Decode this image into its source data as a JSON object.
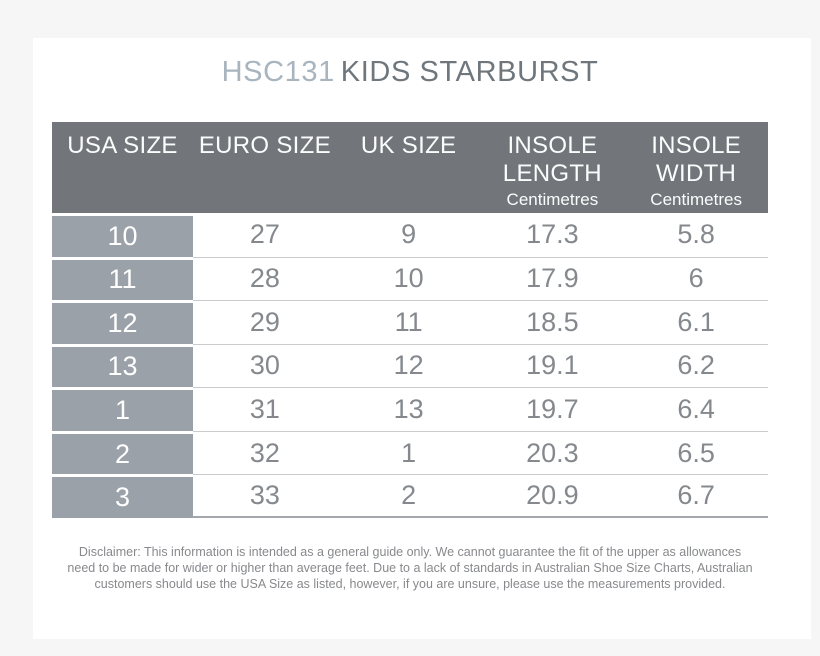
{
  "title": {
    "code": "HSC131",
    "name": "KIDS STARBURST"
  },
  "table": {
    "headers": [
      {
        "label": "USA SIZE",
        "sub": ""
      },
      {
        "label": "EURO SIZE",
        "sub": ""
      },
      {
        "label": "UK SIZE",
        "sub": ""
      },
      {
        "label": "INSOLE LENGTH",
        "sub": "Centimetres"
      },
      {
        "label": "INSOLE WIDTH",
        "sub": "Centimetres"
      }
    ],
    "rows": [
      [
        "10",
        "27",
        "9",
        "17.3",
        "5.8"
      ],
      [
        "11",
        "28",
        "10",
        "17.9",
        "6"
      ],
      [
        "12",
        "29",
        "11",
        "18.5",
        "6.1"
      ],
      [
        "13",
        "30",
        "12",
        "19.1",
        "6.2"
      ],
      [
        "1",
        "31",
        "13",
        "19.7",
        "6.4"
      ],
      [
        "2",
        "32",
        "1",
        "20.3",
        "6.5"
      ],
      [
        "3",
        "33",
        "2",
        "20.9",
        "6.7"
      ]
    ]
  },
  "disclaimer": {
    "lines": [
      "Disclaimer: This information is intended as a general guide only. We cannot guarantee the fit of the upper as allowances",
      "need to be made for wider or higher than average feet. Due to a lack of standards in Australian Shoe Size Charts, Australian",
      "customers should use the USA Size as listed, however, if you are unsure, please use the measurements provided."
    ]
  },
  "colors": {
    "page_bg": "#f6f6f7",
    "card_bg": "#ffffff",
    "header_bg": "#72767b",
    "row_header_bg": "#9aa1a8",
    "header_text": "#fbfcfc",
    "cell_text": "#85898d",
    "title_code": "#a9b5be",
    "title_name": "#6f777d",
    "row_separator": "#c9cbce",
    "table_bottom_border": "#a3a7ab",
    "disclaimer_text": "#87898c"
  },
  "chart_data": {
    "type": "table",
    "title": "HSC131 KIDS STARBURST",
    "columns": [
      "USA SIZE",
      "EURO SIZE",
      "UK SIZE",
      "INSOLE LENGTH (Centimetres)",
      "INSOLE WIDTH (Centimetres)"
    ],
    "rows": [
      [
        "10",
        "27",
        "9",
        "17.3",
        "5.8"
      ],
      [
        "11",
        "28",
        "10",
        "17.9",
        "6"
      ],
      [
        "12",
        "29",
        "11",
        "18.5",
        "6.1"
      ],
      [
        "13",
        "30",
        "12",
        "19.1",
        "6.2"
      ],
      [
        "1",
        "31",
        "13",
        "19.7",
        "6.4"
      ],
      [
        "2",
        "32",
        "1",
        "20.3",
        "6.5"
      ],
      [
        "3",
        "33",
        "2",
        "20.9",
        "6.7"
      ]
    ]
  }
}
